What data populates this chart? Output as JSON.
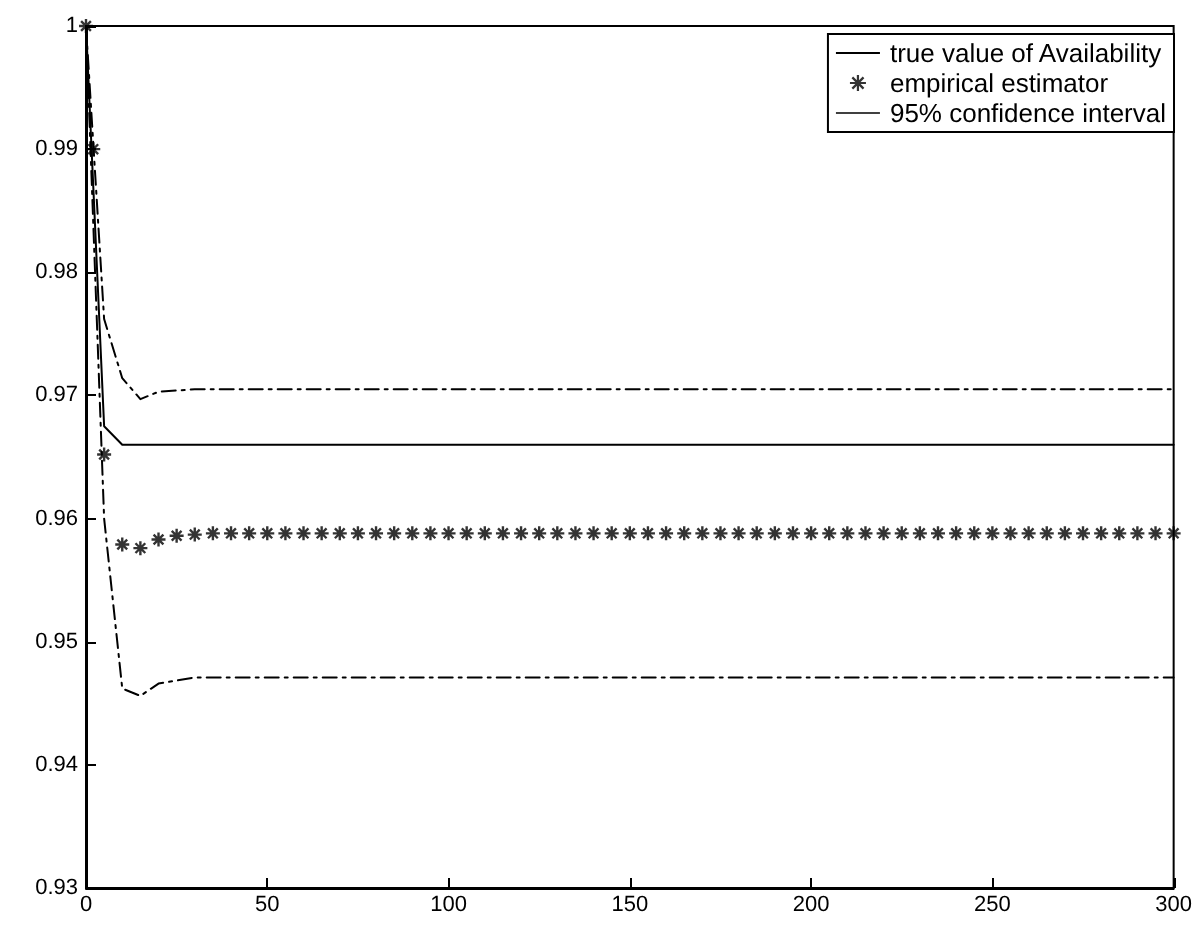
{
  "chart_data": {
    "type": "line",
    "series": [
      {
        "name": "true value of Availability",
        "color": "#000000",
        "line_style": "solid",
        "marker": "none",
        "x": [
          0,
          5,
          10,
          300
        ],
        "values": [
          1,
          0.9675,
          0.966,
          0.966
        ]
      },
      {
        "name": "empirical estimator",
        "type": "scatter",
        "color": "#000000",
        "marker": "cross",
        "x": [
          0,
          2,
          5,
          10,
          15,
          20,
          25,
          30,
          35,
          40,
          45,
          50,
          55,
          60,
          65,
          70,
          75,
          80,
          85,
          90,
          95,
          100,
          105,
          110,
          115,
          120,
          125,
          130,
          135,
          140,
          145,
          150,
          155,
          160,
          165,
          170,
          175,
          180,
          185,
          190,
          195,
          200,
          205,
          210,
          215,
          220,
          225,
          230,
          235,
          240,
          245,
          250,
          255,
          260,
          265,
          270,
          275,
          280,
          285,
          290,
          295,
          300
        ],
        "values": [
          1,
          0.99,
          0.9652,
          0.9579,
          0.9576,
          0.9583,
          0.9586,
          0.9587,
          0.9588,
          0.9588,
          0.9588,
          0.9588,
          0.9588,
          0.9588,
          0.9588,
          0.9588,
          0.9588,
          0.9588,
          0.9588,
          0.9588,
          0.9588,
          0.9588,
          0.9588,
          0.9588,
          0.9588,
          0.9588,
          0.9588,
          0.9588,
          0.9588,
          0.9588,
          0.9588,
          0.9588,
          0.9588,
          0.9588,
          0.9588,
          0.9588,
          0.9588,
          0.9588,
          0.9588,
          0.9588,
          0.9588,
          0.9588,
          0.9588,
          0.9588,
          0.9588,
          0.9588,
          0.9588,
          0.9588,
          0.9588,
          0.9588,
          0.9588,
          0.9588,
          0.9588,
          0.9588,
          0.9588,
          0.9588,
          0.9588,
          0.9588,
          0.9588,
          0.9588,
          0.9588,
          0.9588
        ]
      },
      {
        "name": "95% confidence interval",
        "color": "#000000",
        "line_style": "dashed",
        "marker": "none",
        "x": [
          0,
          5,
          10,
          15,
          20,
          30,
          300
        ],
        "values": [
          1,
          0.9762,
          0.9714,
          0.9697,
          0.9703,
          0.9705,
          0.9705
        ]
      },
      {
        "color": "#000000",
        "line_style": "dashed",
        "marker": "none",
        "x": [
          0,
          5,
          10,
          15,
          20,
          30,
          300
        ],
        "values": [
          1,
          0.96,
          0.9462,
          0.9456,
          0.9466,
          0.9471,
          0.9471
        ]
      }
    ],
    "xlim": [
      0,
      300
    ],
    "xticks": [
      0,
      50,
      100,
      150,
      200,
      250,
      300
    ],
    "ylim": [
      0.93,
      1
    ],
    "yticks": [
      0.93,
      0.94,
      0.95,
      0.96,
      0.97,
      0.98,
      0.99,
      1
    ],
    "grid": false,
    "legend": "top right"
  }
}
